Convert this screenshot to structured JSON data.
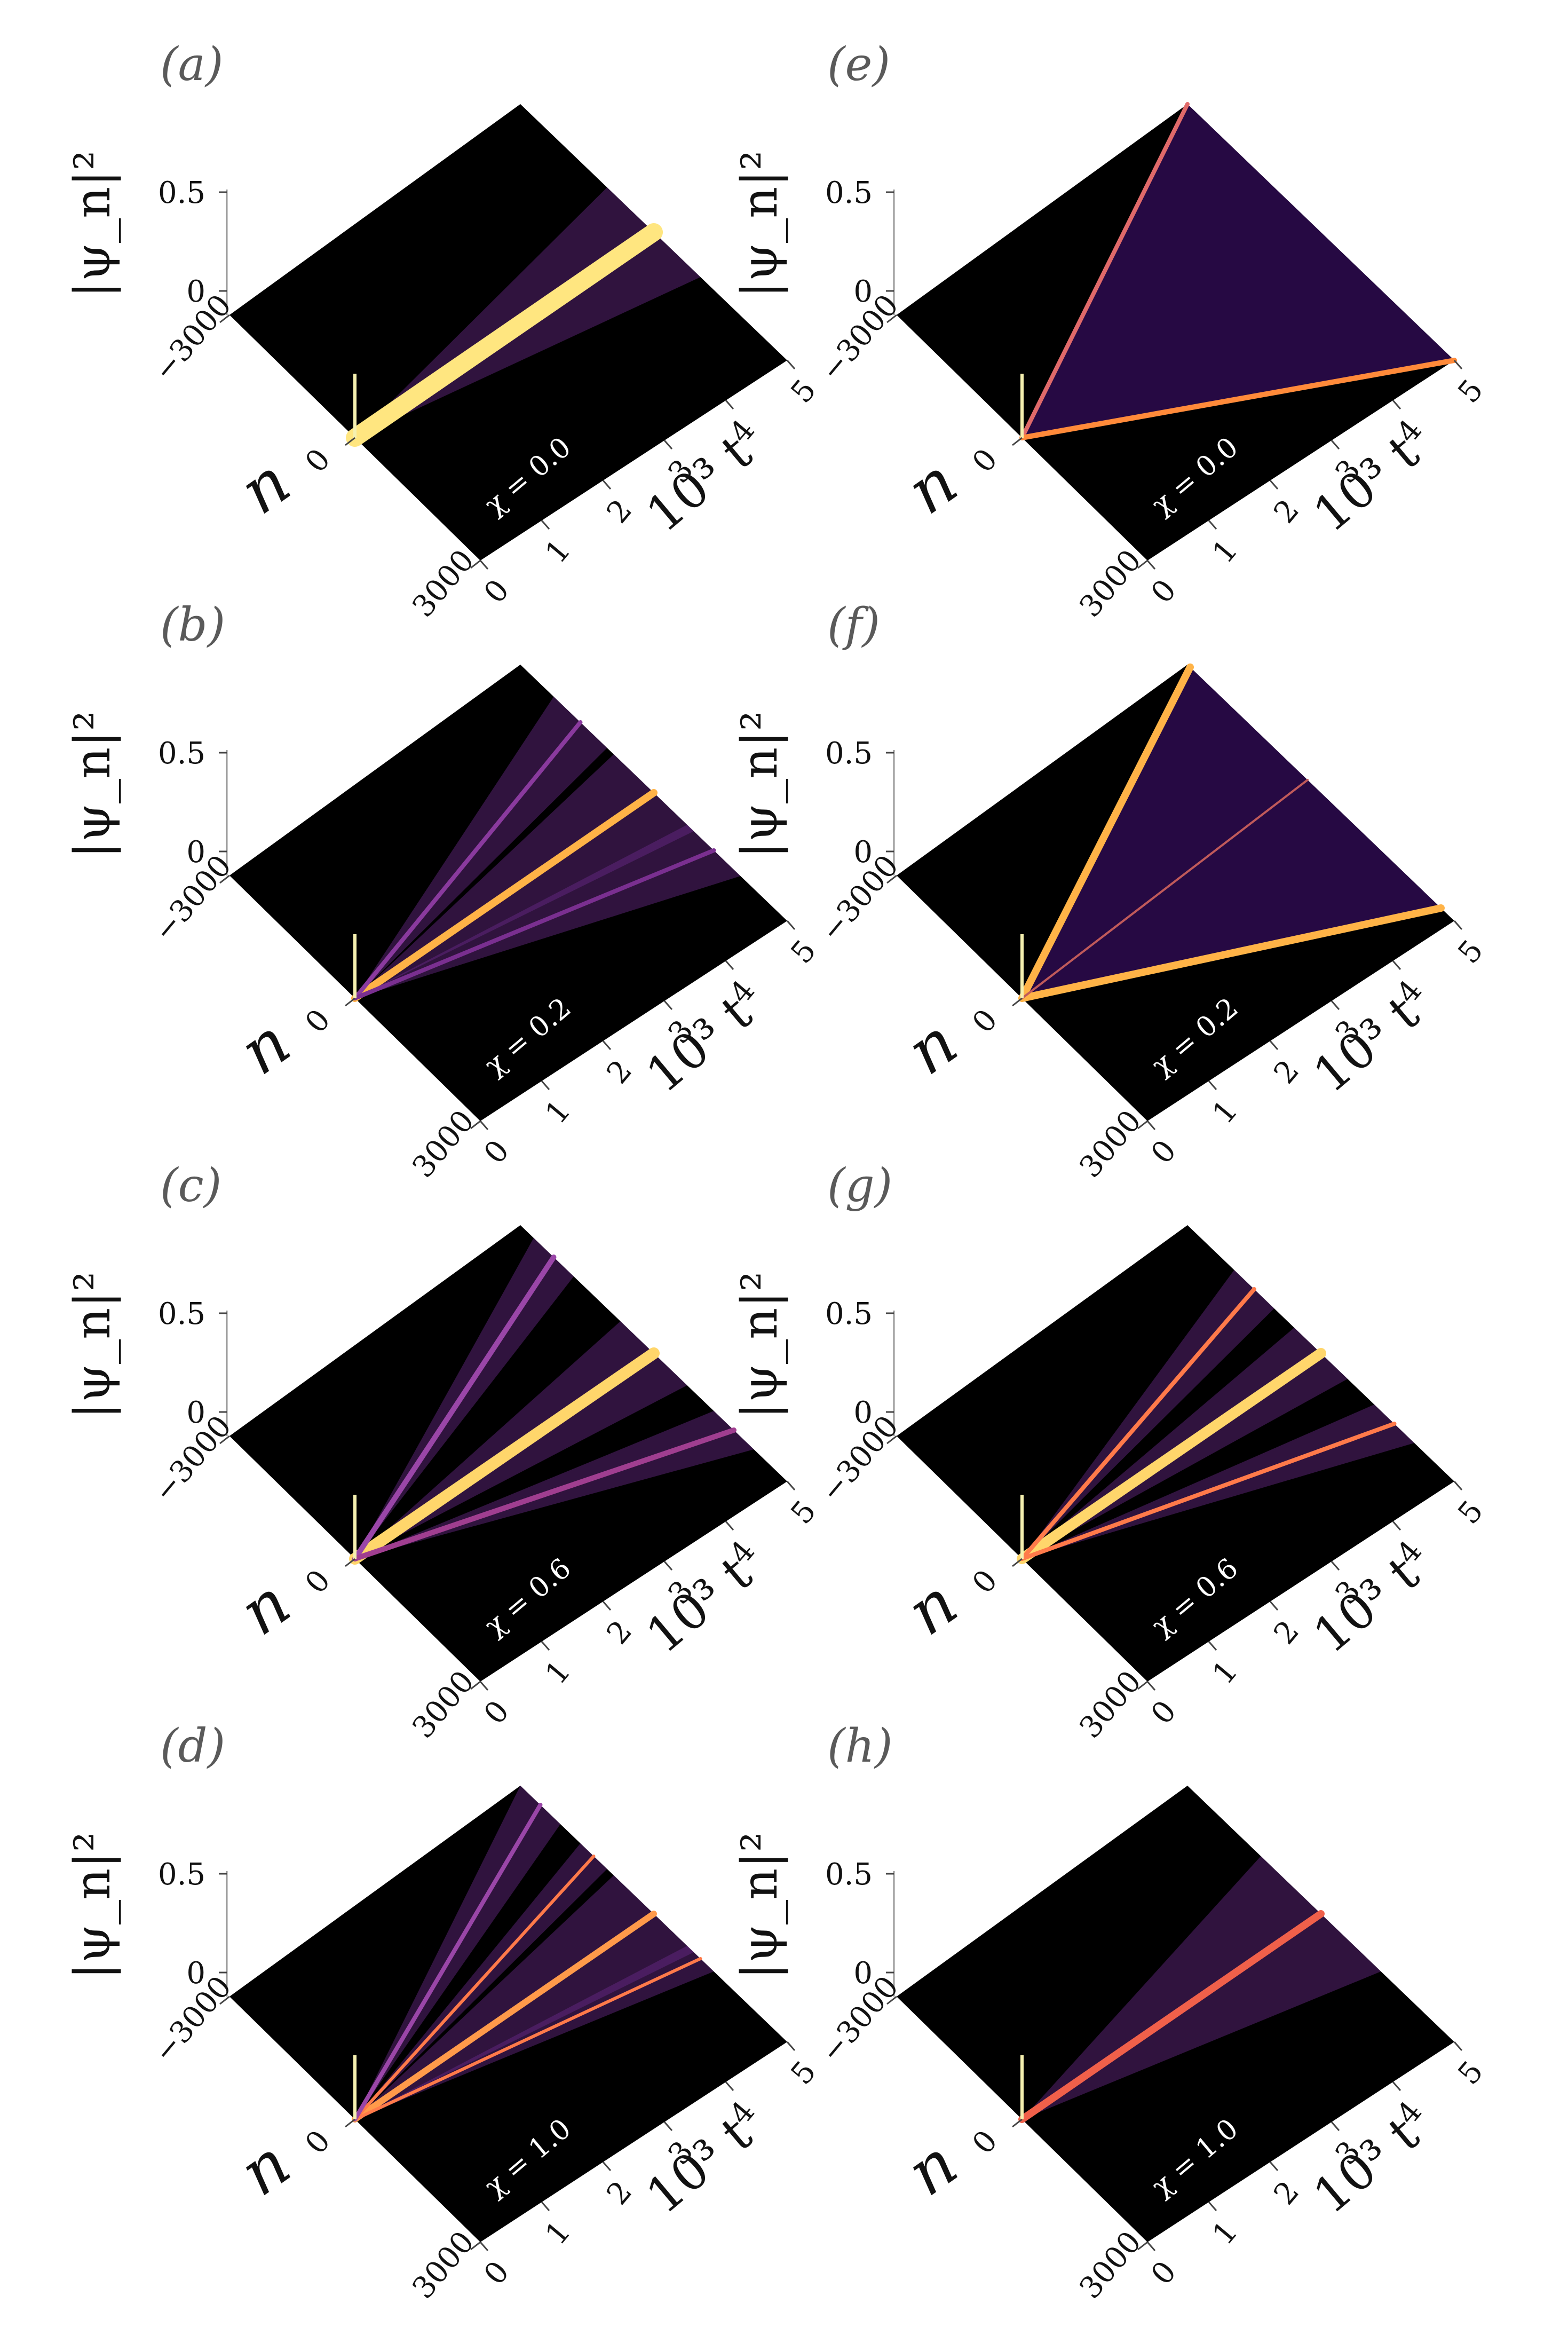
{
  "chart_data": [
    {
      "type": "heatmap",
      "panel_label": "(a)",
      "chi_label": "χ = 0.0",
      "zlabel": "|ψ_n|²",
      "xlabel": "n",
      "ylabel": "10³ t",
      "z_ticks": [
        "0.5",
        "0"
      ],
      "n_ticks": [
        "−3000",
        "0",
        "3000"
      ],
      "t_ticks": [
        "0",
        "1",
        "2",
        "3",
        "4",
        "5"
      ],
      "xlim": [
        -3000,
        3000
      ],
      "tlim": [
        0,
        5
      ],
      "zlim": [
        0,
        0.5
      ],
      "beams": [
        {
          "slope": 0,
          "color": "#ffe680",
          "width": 34,
          "fan": 0.35
        }
      ]
    },
    {
      "type": "heatmap",
      "panel_label": "(b)",
      "chi_label": "χ = 0.2",
      "zlabel": "|ψ_n|²",
      "xlabel": "n",
      "ylabel": "10³ t",
      "z_ticks": [
        "0.5",
        "0"
      ],
      "n_ticks": [
        "−3000",
        "0",
        "3000"
      ],
      "t_ticks": [
        "0",
        "1",
        "2",
        "3",
        "4",
        "5"
      ],
      "xlim": [
        -3000,
        3000
      ],
      "tlim": [
        0,
        5
      ],
      "zlim": [
        0,
        0.5
      ],
      "beams": [
        {
          "slope": 0,
          "color": "#ffb347",
          "width": 14,
          "fan": 0.3
        },
        {
          "slope": -0.55,
          "color": "#8a3a9e",
          "width": 8,
          "fan": 0.2
        },
        {
          "slope": 0.45,
          "color": "#7a2f90",
          "width": 8,
          "fan": 0.2
        }
      ]
    },
    {
      "type": "heatmap",
      "panel_label": "(c)",
      "chi_label": "χ = 0.6",
      "zlabel": "|ψ_n|²",
      "xlabel": "n",
      "ylabel": "10³ t",
      "z_ticks": [
        "0.5",
        "0"
      ],
      "n_ticks": [
        "−3000",
        "0",
        "3000"
      ],
      "t_ticks": [
        "0",
        "1",
        "2",
        "3",
        "4",
        "5"
      ],
      "xlim": [
        -3000,
        3000
      ],
      "tlim": [
        0,
        5
      ],
      "zlim": [
        0,
        0.5
      ],
      "beams": [
        {
          "slope": 0,
          "color": "#ffd66b",
          "width": 22,
          "fan": 0.25
        },
        {
          "slope": -0.75,
          "color": "#9a46a8",
          "width": 10,
          "fan": 0.15
        },
        {
          "slope": 0.6,
          "color": "#a03e90",
          "width": 10,
          "fan": 0.15
        }
      ]
    },
    {
      "type": "heatmap",
      "panel_label": "(d)",
      "chi_label": "χ = 1.0",
      "zlabel": "|ψ_n|²",
      "xlabel": "n",
      "ylabel": "10³ t",
      "z_ticks": [
        "0.5",
        "0"
      ],
      "n_ticks": [
        "−3000",
        "0",
        "3000"
      ],
      "t_ticks": [
        "0",
        "1",
        "2",
        "3",
        "4",
        "5"
      ],
      "xlim": [
        -3000,
        3000
      ],
      "tlim": [
        0,
        5
      ],
      "zlim": [
        0,
        0.5
      ],
      "beams": [
        {
          "slope": 0,
          "color": "#ff9a4a",
          "width": 12,
          "fan": 0.3
        },
        {
          "slope": -0.45,
          "color": "#ff7a4a",
          "width": 6,
          "fan": 0.1
        },
        {
          "slope": 0.35,
          "color": "#ff7a4a",
          "width": 6,
          "fan": 0.1
        },
        {
          "slope": -0.85,
          "color": "#9a46a8",
          "width": 8,
          "fan": 0.15
        }
      ]
    },
    {
      "type": "heatmap",
      "panel_label": "(e)",
      "chi_label": "χ = 0.0",
      "zlabel": "|ψ_n|²",
      "xlabel": "n",
      "ylabel": "10³ t",
      "z_ticks": [
        "0.5",
        "0"
      ],
      "n_ticks": [
        "−3000",
        "0",
        "3000"
      ],
      "t_ticks": [
        "0",
        "1",
        "2",
        "3",
        "4",
        "5"
      ],
      "xlim": [
        -3000,
        3000
      ],
      "tlim": [
        0,
        5
      ],
      "zlim": [
        0,
        0.5
      ],
      "beams": [
        {
          "slope": -1,
          "color": "#e06a6a",
          "width": 8,
          "fan": 0
        },
        {
          "slope": 1,
          "color": "#ff8a3a",
          "width": 10,
          "fan": 0
        }
      ],
      "fill_cone": true
    },
    {
      "type": "heatmap",
      "panel_label": "(f)",
      "chi_label": "χ = 0.2",
      "zlabel": "|ψ_n|²",
      "xlabel": "n",
      "ylabel": "10³ t",
      "z_ticks": [
        "0.5",
        "0"
      ],
      "n_ticks": [
        "−3000",
        "0",
        "3000"
      ],
      "t_ticks": [
        "0",
        "1",
        "2",
        "3",
        "4",
        "5"
      ],
      "xlim": [
        -3000,
        3000
      ],
      "tlim": [
        0,
        5
      ],
      "zlim": [
        0,
        0.5
      ],
      "beams": [
        {
          "slope": -0.98,
          "color": "#ffb347",
          "width": 14,
          "fan": 0
        },
        {
          "slope": 0.9,
          "color": "#ffb347",
          "width": 14,
          "fan": 0
        },
        {
          "slope": -0.1,
          "color": "#c05a5a",
          "width": 4,
          "fan": 0
        }
      ],
      "fill_cone": true
    },
    {
      "type": "heatmap",
      "panel_label": "(g)",
      "chi_label": "χ = 0.6",
      "zlabel": "|ψ_n|²",
      "xlabel": "n",
      "ylabel": "10³ t",
      "z_ticks": [
        "0.5",
        "0"
      ],
      "n_ticks": [
        "−3000",
        "0",
        "3000"
      ],
      "t_ticks": [
        "0",
        "1",
        "2",
        "3",
        "4",
        "5"
      ],
      "xlim": [
        -3000,
        3000
      ],
      "tlim": [
        0,
        5
      ],
      "zlim": [
        0,
        0.5
      ],
      "beams": [
        {
          "slope": 0,
          "color": "#ffd66b",
          "width": 20,
          "fan": 0.2
        },
        {
          "slope": -0.5,
          "color": "#ff7a4a",
          "width": 8,
          "fan": 0.15
        },
        {
          "slope": 0.55,
          "color": "#ff7a4a",
          "width": 8,
          "fan": 0.15
        }
      ]
    },
    {
      "type": "heatmap",
      "panel_label": "(h)",
      "chi_label": "χ = 1.0",
      "zlabel": "|ψ_n|²",
      "xlabel": "n",
      "ylabel": "10³ t",
      "z_ticks": [
        "0.5",
        "0"
      ],
      "n_ticks": [
        "−3000",
        "0",
        "3000"
      ],
      "t_ticks": [
        "0",
        "1",
        "2",
        "3",
        "4",
        "5"
      ],
      "xlim": [
        -3000,
        3000
      ],
      "tlim": [
        0,
        5
      ],
      "zlim": [
        0,
        0.5
      ],
      "beams": [
        {
          "slope": 0,
          "color": "#f0604a",
          "width": 14,
          "fan": 0.45
        }
      ]
    }
  ],
  "colors": {
    "background": "#000000",
    "fan_low": "#2a0a4a",
    "fan_mid": "#6a2a8a"
  }
}
